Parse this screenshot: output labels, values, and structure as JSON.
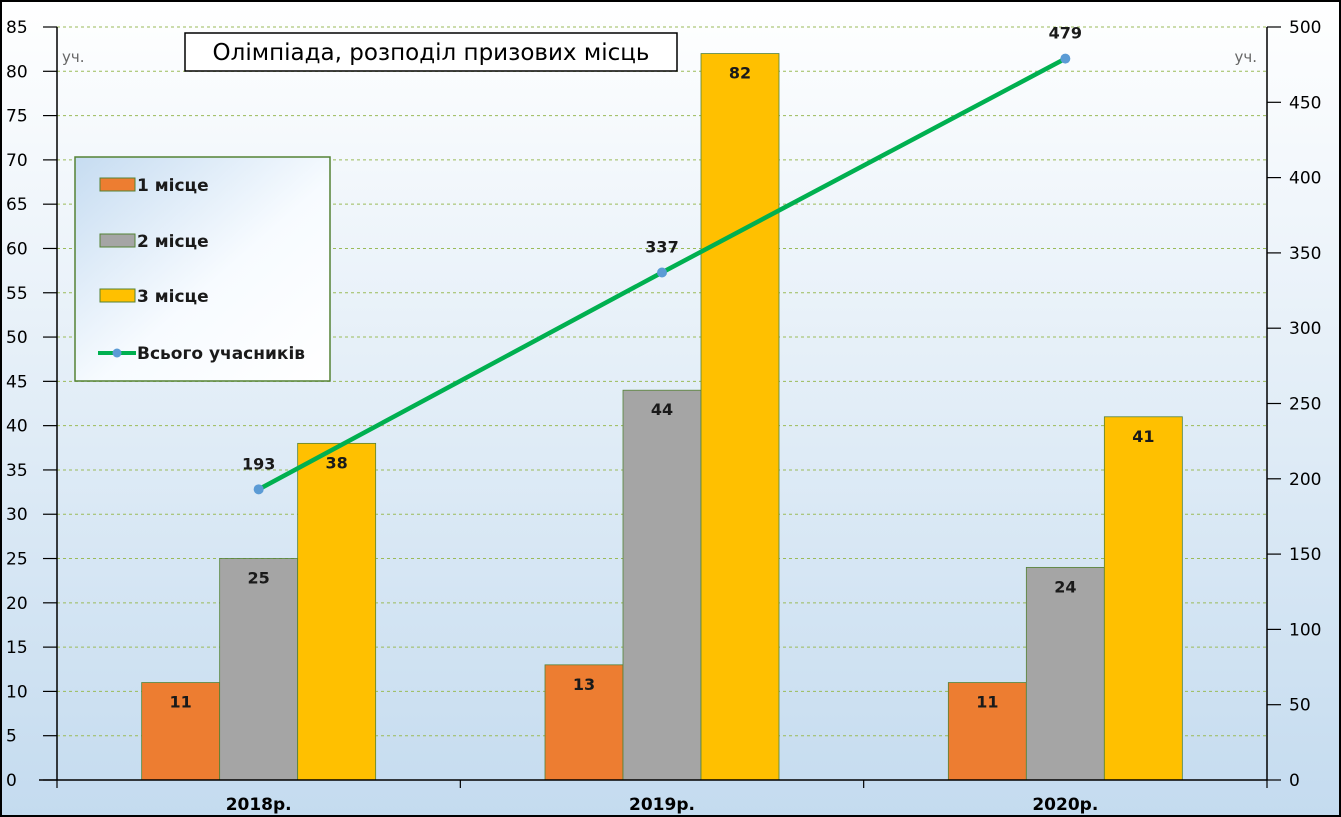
{
  "chart_data": {
    "type": "bar",
    "title": "Олімпіада, розподіл призових місць",
    "categories": [
      "2018р.",
      "2019р.",
      "2020р."
    ],
    "series": [
      {
        "name": "1 місце",
        "values": [
          11,
          13,
          11
        ],
        "color": "#ED7D31",
        "axis": "left"
      },
      {
        "name": "2 місце",
        "values": [
          25,
          44,
          24
        ],
        "color": "#A5A5A5",
        "axis": "left"
      },
      {
        "name": "3 місце",
        "values": [
          38,
          82,
          41
        ],
        "color": "#FFC000",
        "axis": "left"
      }
    ],
    "line_series": {
      "name": "Всього учасників",
      "type": "line",
      "values": [
        193,
        337,
        479
      ],
      "color": "#00B050",
      "marker_color": "#5B9BD5",
      "axis": "right"
    },
    "y_left": {
      "label": "уч.",
      "lim": [
        0,
        85
      ],
      "ticks": [
        0,
        5,
        10,
        15,
        20,
        25,
        30,
        35,
        40,
        45,
        50,
        55,
        60,
        65,
        70,
        75,
        80,
        85
      ]
    },
    "y_right": {
      "label": "уч.",
      "lim": [
        0,
        500
      ],
      "ticks": [
        0,
        50,
        100,
        150,
        200,
        250,
        300,
        350,
        400,
        450,
        500
      ]
    },
    "grid": true,
    "legend_position": "top-left",
    "data_labels": true
  }
}
